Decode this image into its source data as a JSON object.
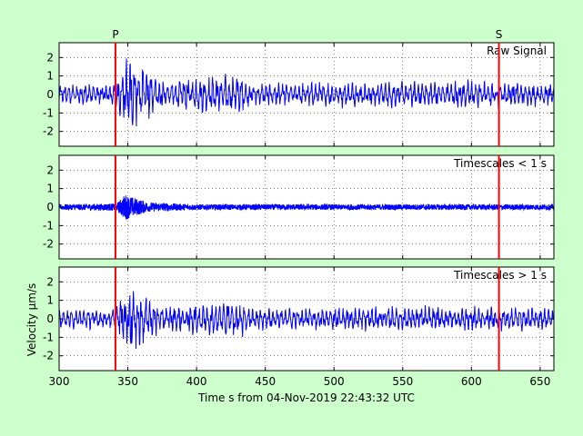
{
  "colors": {
    "background": "#ccffcc",
    "signal": "#0000ff",
    "phase_marker": "#ff0000",
    "axes": "#000000"
  },
  "chart_data": {
    "type": "line",
    "xlabel": "Time s from 04-Nov-2019 22:43:32 UTC",
    "ylabel": "Velocity µm/s",
    "xlim": [
      300,
      660
    ],
    "x_ticks": [
      300,
      350,
      400,
      450,
      500,
      550,
      600,
      650
    ],
    "grid": true,
    "phase_markers": [
      {
        "label": "P",
        "time": 341
      },
      {
        "label": "S",
        "time": 620
      }
    ],
    "panels": [
      {
        "label": "Raw Signal",
        "ylim": [
          -2.8,
          2.8
        ],
        "y_ticks": [
          -2,
          -1,
          0,
          1,
          2
        ],
        "series": {
          "background_amplitude": 0.45,
          "envelope": [
            [
              300,
              0.45
            ],
            [
              340,
              0.5
            ],
            [
              345,
              1.0
            ],
            [
              352,
              1.8
            ],
            [
              362,
              1.2
            ],
            [
              375,
              0.6
            ],
            [
              430,
              0.9
            ],
            [
              440,
              0.5
            ],
            [
              600,
              0.6
            ],
            [
              660,
              0.5
            ]
          ]
        }
      },
      {
        "label": "Timescales < 1 s",
        "ylim": [
          -2.8,
          2.8
        ],
        "y_ticks": [
          -2,
          -1,
          0,
          1,
          2
        ],
        "series": {
          "background_amplitude": 0.15,
          "envelope": [
            [
              300,
              0.15
            ],
            [
              342,
              0.2
            ],
            [
              348,
              0.7
            ],
            [
              355,
              0.5
            ],
            [
              365,
              0.25
            ],
            [
              400,
              0.15
            ],
            [
              660,
              0.15
            ]
          ]
        }
      },
      {
        "label": "Timescales > 1 s",
        "ylim": [
          -2.8,
          2.8
        ],
        "y_ticks": [
          -2,
          -1,
          0,
          1,
          2
        ],
        "series": {
          "background_amplitude": 0.4,
          "envelope": [
            [
              300,
              0.4
            ],
            [
              340,
              0.45
            ],
            [
              345,
              1.0
            ],
            [
              352,
              1.7
            ],
            [
              362,
              1.1
            ],
            [
              375,
              0.55
            ],
            [
              430,
              0.9
            ],
            [
              440,
              0.45
            ],
            [
              600,
              0.55
            ],
            [
              660,
              0.45
            ]
          ]
        }
      }
    ]
  }
}
